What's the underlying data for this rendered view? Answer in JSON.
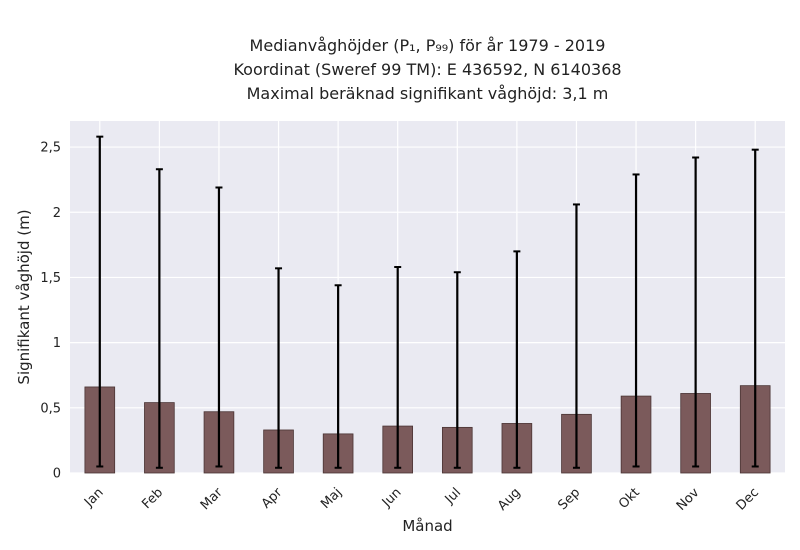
{
  "chart_data": {
    "type": "bar",
    "title_lines": [
      "Medianvåghöjder (P₁, P₉₉) för år 1979 - 2019",
      "Koordinat (Sweref 99 TM): E 436592, N 6140368",
      "Maximal beräknad signifikant våghöjd: 3,1 m"
    ],
    "xlabel": "Månad",
    "ylabel": "Signifikant våghöjd (m)",
    "categories": [
      "Jan",
      "Feb",
      "Mar",
      "Apr",
      "Maj",
      "Jun",
      "Jul",
      "Aug",
      "Sep",
      "Okt",
      "Nov",
      "Dec"
    ],
    "values": [
      0.66,
      0.54,
      0.47,
      0.33,
      0.3,
      0.36,
      0.35,
      0.38,
      0.45,
      0.59,
      0.61,
      0.67
    ],
    "error_low": [
      0.05,
      0.04,
      0.05,
      0.04,
      0.04,
      0.04,
      0.04,
      0.04,
      0.04,
      0.05,
      0.05,
      0.05
    ],
    "error_high": [
      2.58,
      2.33,
      2.19,
      1.57,
      1.44,
      1.58,
      1.54,
      1.7,
      2.06,
      2.29,
      2.42,
      2.48
    ],
    "ylim": [
      0,
      2.7
    ],
    "yticks": [
      0,
      0.5,
      1,
      1.5,
      2,
      2.5
    ],
    "ytick_labels": [
      "0",
      "0,5",
      "1",
      "1,5",
      "2",
      "2,5"
    ],
    "grid": true,
    "colors": {
      "bar": "#7b5a5b",
      "bar_edge": "#4a3434",
      "background": "#eaeaf2",
      "grid": "#ffffff",
      "error": "#000000"
    }
  }
}
